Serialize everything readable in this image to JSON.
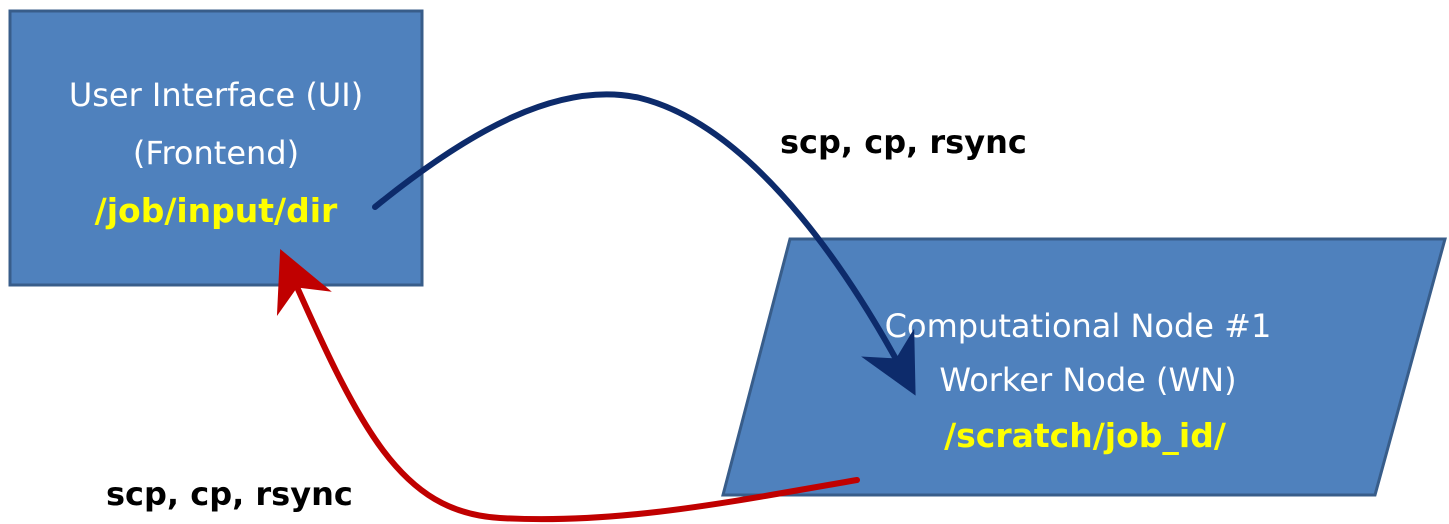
{
  "nodes": {
    "ui": {
      "line1": "User Interface (UI)",
      "line2": "(Frontend)",
      "path": "/job/input/dir"
    },
    "wn": {
      "line1": "Computational Node #1",
      "line2": "Worker Node (WN)",
      "path": "/scratch/job_id/"
    }
  },
  "edges": {
    "to_worker": {
      "label": "scp, cp, rsync",
      "color": "#0d2b6b"
    },
    "to_ui": {
      "label": "scp, cp, rsync",
      "color": "#c00000"
    }
  },
  "colors": {
    "node_fill": "#4f81bd",
    "node_stroke": "#385d8a",
    "node_text": "#ffffff",
    "path_text": "#ffff00"
  }
}
